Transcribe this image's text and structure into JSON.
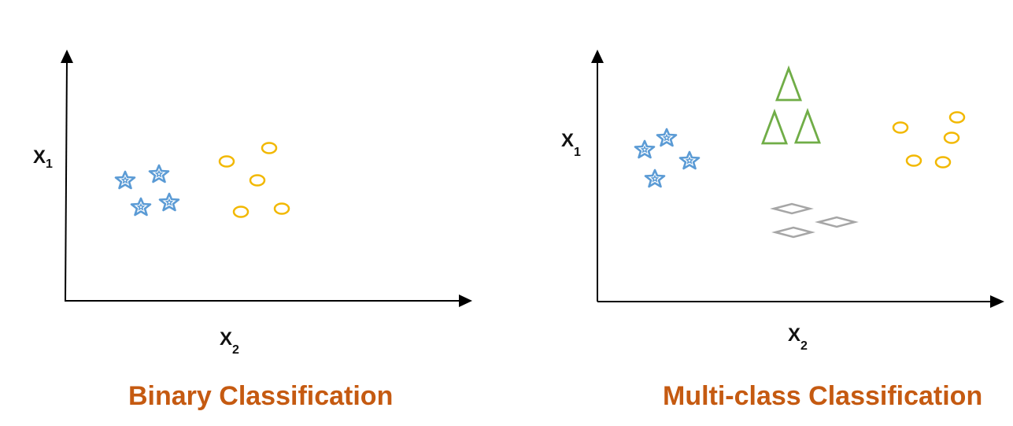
{
  "colors": {
    "axis": "#000000",
    "star": "#5B9BD5",
    "circle": "#F2B800",
    "triangle": "#70AD47",
    "diamond": "#A6A6A6",
    "caption": "#C55A11"
  },
  "panels": [
    {
      "id": "binary",
      "caption": "Binary Classification",
      "y_axis": {
        "label": "X",
        "subscript": "1"
      },
      "x_axis": {
        "label": "X",
        "subscript": "2"
      },
      "marker_shapes": [
        "star",
        "circle"
      ]
    },
    {
      "id": "multiclass",
      "caption": "Multi-class Classification",
      "y_axis": {
        "label": "X",
        "subscript": "1"
      },
      "x_axis": {
        "label": "X",
        "subscript": "2"
      },
      "marker_shapes": [
        "star",
        "triangle",
        "circle",
        "diamond"
      ]
    }
  ]
}
